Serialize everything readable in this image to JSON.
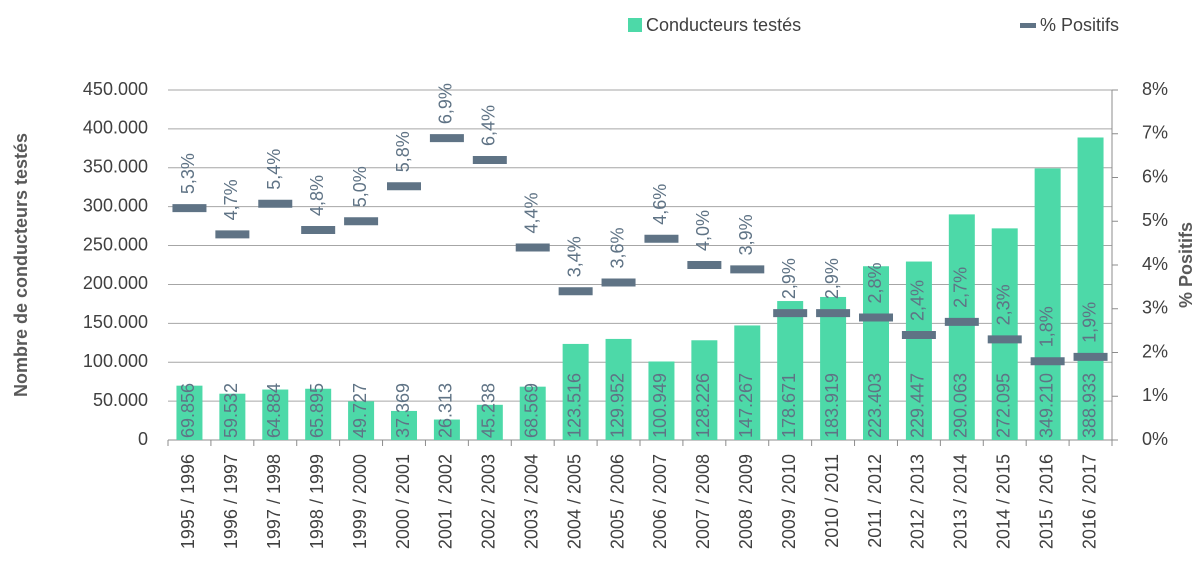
{
  "chart_data": {
    "type": "bar",
    "categories": [
      "1995 / 1996",
      "1996 / 1997",
      "1997 / 1998",
      "1998 / 1999",
      "1999 / 2000",
      "2000 / 2001",
      "2001 / 2002",
      "2002 / 2003",
      "2003 / 2004",
      "2004 / 2005",
      "2005 / 2006",
      "2006 / 2007",
      "2007 / 2008",
      "2008 / 2009",
      "2009 / 2010",
      "2010 / 2011",
      "2011 / 2012",
      "2012 / 2013",
      "2013 / 2014",
      "2014 / 2015",
      "2015 / 2016",
      "2016 / 2017"
    ],
    "series": [
      {
        "name": "Conducteurs testés",
        "color": "#4dd9a8",
        "values": [
          69856,
          59532,
          64884,
          65895,
          49727,
          37369,
          26313,
          45238,
          68569,
          123516,
          129952,
          100949,
          128226,
          147267,
          178671,
          183919,
          223403,
          229447,
          290063,
          272095,
          349210,
          388933
        ],
        "value_labels": [
          "69.856",
          "59.532",
          "64.884",
          "65.895",
          "49.727",
          "37.369",
          "26.313",
          "45.238",
          "68.569",
          "123.516",
          "129.952",
          "100.949",
          "128.226",
          "147.267",
          "178.671",
          "183.919",
          "223.403",
          "229.447",
          "290.063",
          "272.095",
          "349.210",
          "388.933"
        ]
      },
      {
        "name": "% Positifs",
        "color": "#5f7385",
        "axis": "y2",
        "values": [
          5.3,
          4.7,
          5.4,
          4.8,
          5.0,
          5.8,
          6.9,
          6.4,
          4.4,
          3.4,
          3.6,
          4.6,
          4.0,
          3.9,
          2.9,
          2.9,
          2.8,
          2.4,
          2.7,
          2.3,
          1.8,
          1.9
        ],
        "value_labels": [
          "5,3%",
          "4,7%",
          "5,4%",
          "4,8%",
          "5,0%",
          "5,8%",
          "6,9%",
          "6,4%",
          "4,4%",
          "3,4%",
          "3,6%",
          "4,6%",
          "4,0%",
          "3,9%",
          "2,9%",
          "2,9%",
          "2,8%",
          "2,4%",
          "2,7%",
          "2,3%",
          "1,8%",
          "1,9%"
        ]
      }
    ],
    "ylabel": "Nombre de conducteurs testés",
    "y2label": "% Positifs",
    "ylim": [
      0,
      450000
    ],
    "yticks": [
      0,
      {
        "value": 50000,
        "label": "50.000"
      },
      {
        "value": 100000,
        "label": "100.000"
      },
      {
        "value": 150000,
        "label": "150.000"
      },
      {
        "value": 200000,
        "label": "200.000"
      },
      {
        "value": 250000,
        "label": "250.000"
      },
      {
        "value": 300000,
        "label": "300.000"
      },
      {
        "value": 350000,
        "label": "350.000"
      },
      {
        "value": 400000,
        "label": "400.000"
      },
      {
        "value": 450000,
        "label": "450.000"
      }
    ],
    "y2lim": [
      0,
      8
    ],
    "y2ticks": [
      {
        "value": 0,
        "label": "0%"
      },
      {
        "value": 1,
        "label": "1%"
      },
      {
        "value": 2,
        "label": "2%"
      },
      {
        "value": 3,
        "label": "3%"
      },
      {
        "value": 4,
        "label": "4%"
      },
      {
        "value": 5,
        "label": "5%"
      },
      {
        "value": 6,
        "label": "6%"
      },
      {
        "value": 7,
        "label": "7%"
      },
      {
        "value": 8,
        "label": "8%"
      }
    ],
    "grid": true,
    "legend": "top"
  }
}
